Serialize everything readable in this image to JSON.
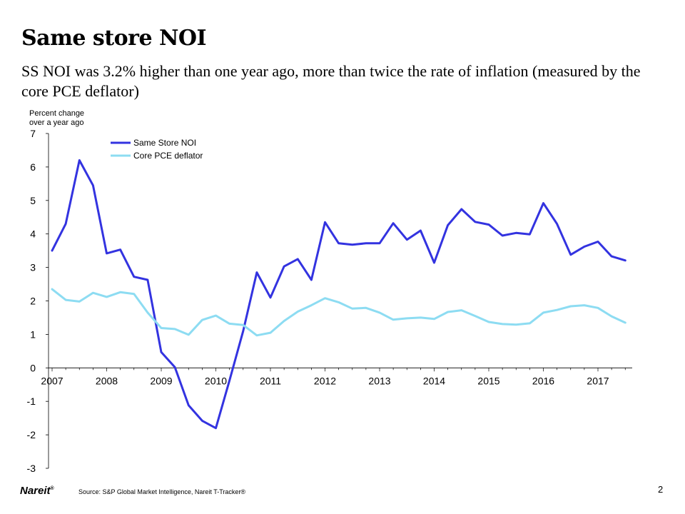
{
  "header": {
    "title": "Same store NOI",
    "subtitle": "SS NOI was 3.2% higher than one year ago, more than twice the rate of inflation (measured by the core PCE deflator)"
  },
  "footer": {
    "logo_text": "Nareit",
    "logo_mark": "®",
    "source": "Source: S&P Global Market Intelligence, Nareit T-Tracker®",
    "page_number": "2"
  },
  "colors": {
    "same_store_noi": "#3333e0",
    "core_pce": "#8ddcf2",
    "axis": "#000000"
  },
  "chart_data": {
    "type": "line",
    "title": "",
    "ylabel": "Percent change over a year ago",
    "ylabel_lines": [
      "Percent change",
      "over a year ago"
    ],
    "xlabel": "",
    "ylim": [
      -3,
      7
    ],
    "y_ticks": [
      "7",
      "6",
      "5",
      "4",
      "3",
      "2",
      "1",
      "0",
      "-1",
      "-2",
      "-3"
    ],
    "x_ticks": [
      "2007",
      "2008",
      "2009",
      "2010",
      "2011",
      "2012",
      "2013",
      "2014",
      "2015",
      "2016",
      "2017"
    ],
    "x_period_start": 2007,
    "periods_per_year": 4,
    "grid": false,
    "legend_position": "top-left",
    "series": [
      {
        "name": "Same Store NOI",
        "color_key": "same_store_noi",
        "values": [
          3.5,
          4.3,
          6.2,
          5.45,
          3.42,
          3.53,
          2.72,
          2.63,
          0.47,
          0.02,
          -1.12,
          -1.58,
          -1.8,
          -0.38,
          1.1,
          2.85,
          2.1,
          3.03,
          3.25,
          2.63,
          4.35,
          3.72,
          3.68,
          3.72,
          3.72,
          4.32,
          3.83,
          4.1,
          3.14,
          4.26,
          4.74,
          4.36,
          4.28,
          3.95,
          4.03,
          3.99,
          4.92,
          4.3,
          3.38,
          3.62,
          3.77,
          3.33,
          3.21
        ]
      },
      {
        "name": "Core PCE deflator",
        "color_key": "core_pce",
        "values": [
          2.35,
          2.03,
          1.98,
          2.24,
          2.12,
          2.26,
          2.21,
          1.65,
          1.19,
          1.16,
          0.99,
          1.43,
          1.56,
          1.32,
          1.28,
          0.97,
          1.05,
          1.4,
          1.68,
          1.87,
          2.08,
          1.96,
          1.77,
          1.79,
          1.65,
          1.44,
          1.48,
          1.5,
          1.46,
          1.67,
          1.72,
          1.55,
          1.37,
          1.31,
          1.29,
          1.33,
          1.65,
          1.73,
          1.84,
          1.87,
          1.79,
          1.54,
          1.35
        ]
      }
    ]
  }
}
